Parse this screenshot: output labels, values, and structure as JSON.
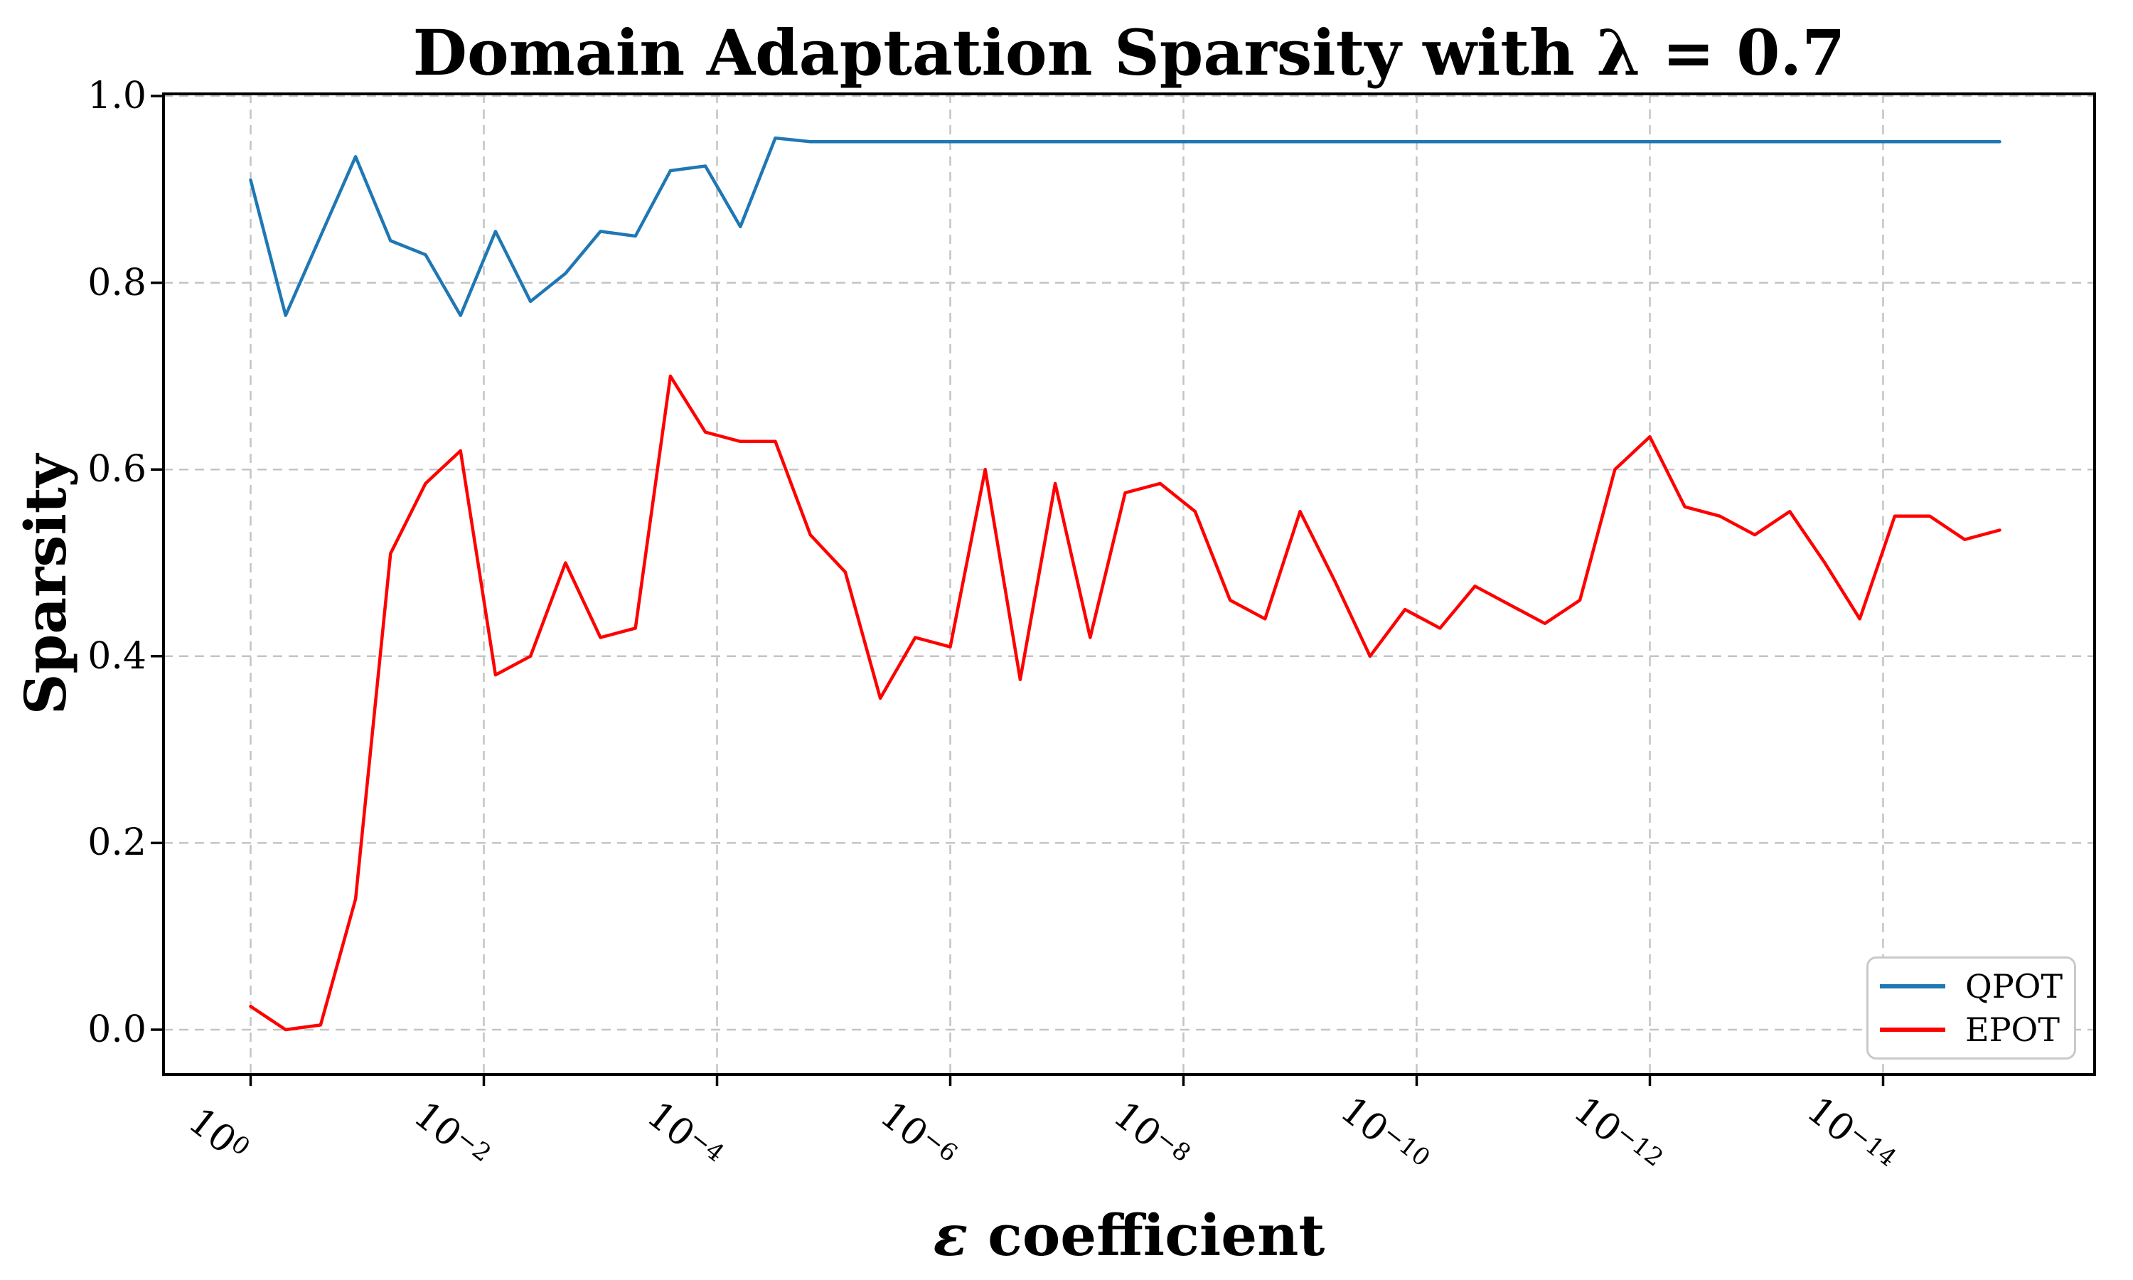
{
  "figure_title": "Domain Adaptation Sparsity with λ = 0.7",
  "chart_data": {
    "type": "line",
    "title": "Domain Adaptation Sparsity with λ = 0.7",
    "xlabel": "ε coefficient",
    "xlabel_symbol": "ε",
    "xlabel_rest": " coefficient",
    "ylabel": "Sparsity",
    "x_scale": "log (reversed, 10^0 down to 10^-15)",
    "xlim_exponents": [
      0.75,
      -15.85
    ],
    "ylim": [
      -0.05,
      1.0
    ],
    "grid": "both axes, dashed light gray",
    "legend_position": "lower right",
    "x_tick_exponents": [
      0,
      -2,
      -4,
      -6,
      -8,
      -10,
      -12,
      -14
    ],
    "ytick_values": [
      0.0,
      0.2,
      0.4,
      0.6,
      0.8,
      1.0
    ],
    "ytick_labels": [
      "0.0",
      "0.2",
      "0.4",
      "0.6",
      "0.8",
      "1.0"
    ],
    "x_exponents": [
      0,
      -0.3,
      -0.6,
      -0.9,
      -1.2,
      -1.5,
      -1.8,
      -2.1,
      -2.4,
      -2.7,
      -3,
      -3.3,
      -3.6,
      -3.9,
      -4.2,
      -4.5,
      -4.8,
      -5.1,
      -5.4,
      -5.7,
      -6,
      -6.3,
      -6.6,
      -6.9,
      -7.2,
      -7.5,
      -7.8,
      -8.1,
      -8.4,
      -8.7,
      -9,
      -9.3,
      -9.6,
      -9.9,
      -10.2,
      -10.5,
      -10.8,
      -11.1,
      -11.4,
      -11.7,
      -12,
      -12.3,
      -12.6,
      -12.9,
      -13.2,
      -13.5,
      -13.8,
      -14.1,
      -14.4,
      -14.7,
      -15
    ],
    "series": [
      {
        "name": "QPOT",
        "color": "#1f77b4",
        "values": [
          0.91,
          0.765,
          0.85,
          0.935,
          0.845,
          0.83,
          0.765,
          0.855,
          0.78,
          0.81,
          0.855,
          0.85,
          0.92,
          0.925,
          0.86,
          0.955,
          0.951,
          0.951,
          0.951,
          0.951,
          0.951,
          0.951,
          0.951,
          0.951,
          0.951,
          0.951,
          0.951,
          0.951,
          0.951,
          0.951,
          0.951,
          0.951,
          0.951,
          0.951,
          0.951,
          0.951,
          0.951,
          0.951,
          0.951,
          0.951,
          0.951,
          0.951,
          0.951,
          0.951,
          0.951,
          0.951,
          0.951,
          0.951,
          0.951,
          0.951,
          0.951
        ]
      },
      {
        "name": "EPOT",
        "color": "#ff0000",
        "values": [
          0.025,
          0.0,
          0.005,
          0.14,
          0.51,
          0.585,
          0.62,
          0.38,
          0.4,
          0.5,
          0.42,
          0.43,
          0.7,
          0.64,
          0.63,
          0.63,
          0.53,
          0.49,
          0.355,
          0.42,
          0.41,
          0.6,
          0.375,
          0.585,
          0.42,
          0.575,
          0.585,
          0.555,
          0.46,
          0.44,
          0.555,
          0.48,
          0.4,
          0.45,
          0.43,
          0.475,
          0.455,
          0.435,
          0.46,
          0.6,
          0.635,
          0.56,
          0.55,
          0.53,
          0.555,
          0.5,
          0.44,
          0.55,
          0.55,
          0.525,
          0.535
        ]
      }
    ]
  }
}
